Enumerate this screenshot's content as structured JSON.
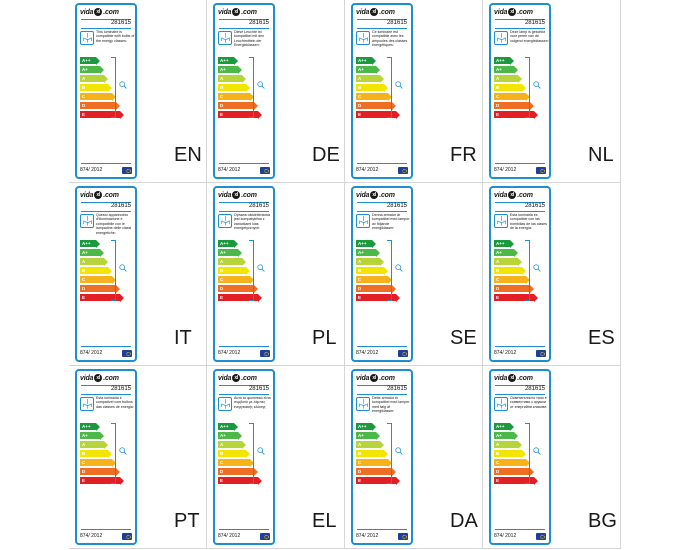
{
  "brand": {
    "prefix": "vida",
    "bubble": "xl",
    "suffix": ".com"
  },
  "product_code": "281615",
  "regulation": "874/ 2012",
  "classes": [
    {
      "letter": "A++",
      "color": "#1a9a3d"
    },
    {
      "letter": "A+",
      "color": "#4cb847"
    },
    {
      "letter": "A",
      "color": "#b7d43a"
    },
    {
      "letter": "B",
      "color": "#f2e600"
    },
    {
      "letter": "C",
      "color": "#f6b21a"
    },
    {
      "letter": "D",
      "color": "#ee6f23"
    },
    {
      "letter": "E",
      "color": "#e11f25"
    }
  ],
  "labels": [
    {
      "lang": "EN",
      "text": "This luminaire is compatible with bulbs of the energy classes:"
    },
    {
      "lang": "DE",
      "text": "Diese Leuchte ist kompatibel mit den Leuchtmitteln der Energieklassen:"
    },
    {
      "lang": "FR",
      "text": "Ce luminaire est compatible avec les ampoules des classes énergétiques:"
    },
    {
      "lang": "NL",
      "text": "Deze lamp is geschikt voor peren van de volgend energieklassen:"
    },
    {
      "lang": "IT",
      "text": "Questo apparecchio d'illuminazione è compatibile con le lampadine delle classi energetiche:"
    },
    {
      "lang": "PL",
      "text": "Oprawa oświetleniowa jest kompatybilna z żarówkami klas energetycznych:"
    },
    {
      "lang": "SE",
      "text": "Denna armatur är kompatibel med lampor av följande energiklasser:"
    },
    {
      "lang": "ES",
      "text": "Esta luminaria es compatible con las bombillas de las clases de la energía:"
    },
    {
      "lang": "PT",
      "text": "Esta luminária é compatível com bulbos das classes de energia:"
    },
    {
      "lang": "EL",
      "text": "Αυτό το φωτιστικό είναι συμβατό με λάμπες ενεργειακής κλάσης:"
    },
    {
      "lang": "DA",
      "text": "Dette armatur er kompatibel med lamper med følg af energiklasser:"
    },
    {
      "lang": "BG",
      "text": "Осветителното тяло е съвместимо с крушки от енергийни класове:"
    }
  ]
}
